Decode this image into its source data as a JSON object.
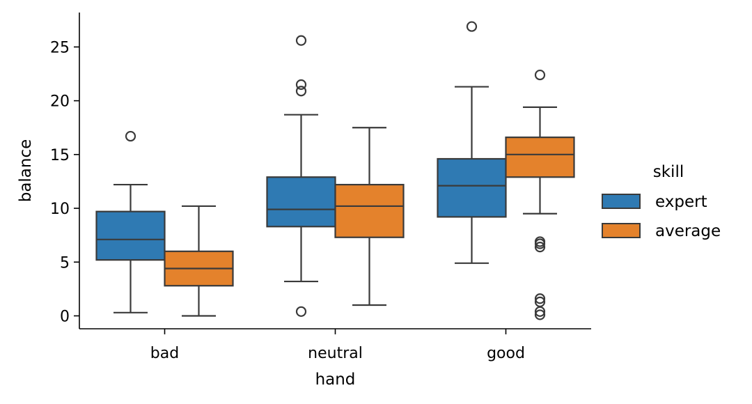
{
  "chart_data": {
    "type": "boxplot",
    "title": "",
    "xlabel": "hand",
    "ylabel": "balance",
    "categories": [
      "bad",
      "neutral",
      "good"
    ],
    "ylim": [
      -1.2,
      28.2
    ],
    "yticks": [
      0,
      5,
      10,
      15,
      20,
      25
    ],
    "grid": false,
    "legend": {
      "title": "skill",
      "placement": "right",
      "entries": [
        "expert",
        "average"
      ]
    },
    "series": [
      {
        "name": "expert",
        "color": "#2f7ab3",
        "boxes": [
          {
            "whislo": 0.3,
            "q1": 5.2,
            "med": 7.1,
            "q3": 9.7,
            "whishi": 12.2,
            "fliers": [
              16.7
            ]
          },
          {
            "whislo": 3.2,
            "q1": 8.3,
            "med": 9.9,
            "q3": 12.9,
            "whishi": 18.7,
            "fliers": [
              0.4,
              20.9,
              21.5,
              25.6
            ]
          },
          {
            "whislo": 4.9,
            "q1": 9.2,
            "med": 12.1,
            "q3": 14.6,
            "whishi": 21.3,
            "fliers": [
              26.9
            ]
          }
        ]
      },
      {
        "name": "average",
        "color": "#e4822c",
        "boxes": [
          {
            "whislo": 0.0,
            "q1": 2.8,
            "med": 4.4,
            "q3": 6.0,
            "whishi": 10.2,
            "fliers": []
          },
          {
            "whislo": 1.0,
            "q1": 7.3,
            "med": 10.2,
            "q3": 12.2,
            "whishi": 17.5,
            "fliers": []
          },
          {
            "whislo": 9.5,
            "q1": 12.9,
            "med": 15.0,
            "q3": 16.6,
            "whishi": 19.4,
            "fliers": [
              0.1,
              0.4,
              1.3,
              1.6,
              6.4,
              6.7,
              6.9,
              22.4
            ]
          }
        ]
      }
    ]
  }
}
